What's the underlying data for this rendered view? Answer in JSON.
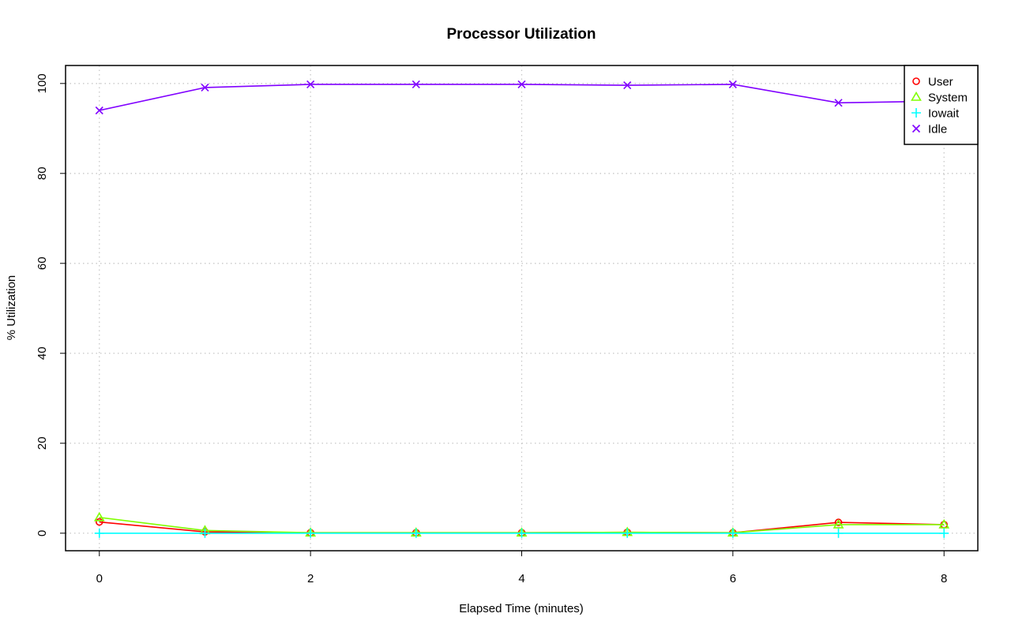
{
  "chart_data": {
    "type": "line",
    "title": "Processor Utilization",
    "xlabel": "Elapsed Time (minutes)",
    "ylabel": "% Utilization",
    "x": [
      0,
      1,
      2,
      3,
      4,
      5,
      6,
      7,
      8
    ],
    "xlim": [
      -0.32,
      8.32
    ],
    "ylim": [
      -3.9,
      104.0
    ],
    "x_ticks": [
      0,
      2,
      4,
      6,
      8
    ],
    "y_ticks": [
      0,
      20,
      40,
      60,
      80,
      100
    ],
    "grid": true,
    "legend_position": "top-right",
    "series": [
      {
        "name": "User",
        "color": "#ff0000",
        "marker": "circle",
        "values": [
          2.5,
          0.3,
          0.1,
          0.1,
          0.1,
          0.2,
          0.1,
          2.4,
          1.9
        ]
      },
      {
        "name": "System",
        "color": "#80ff00",
        "marker": "triangle",
        "values": [
          3.5,
          0.6,
          0.1,
          0.1,
          0.1,
          0.2,
          0.1,
          1.9,
          1.9
        ]
      },
      {
        "name": "Iowait",
        "color": "#00ffff",
        "marker": "plus",
        "values": [
          0.0,
          0.0,
          0.0,
          0.0,
          0.0,
          0.0,
          0.0,
          0.0,
          0.0
        ]
      },
      {
        "name": "Idle",
        "color": "#8000ff",
        "marker": "cross",
        "values": [
          94.0,
          99.1,
          99.8,
          99.8,
          99.8,
          99.6,
          99.8,
          95.7,
          96.1
        ]
      }
    ]
  }
}
